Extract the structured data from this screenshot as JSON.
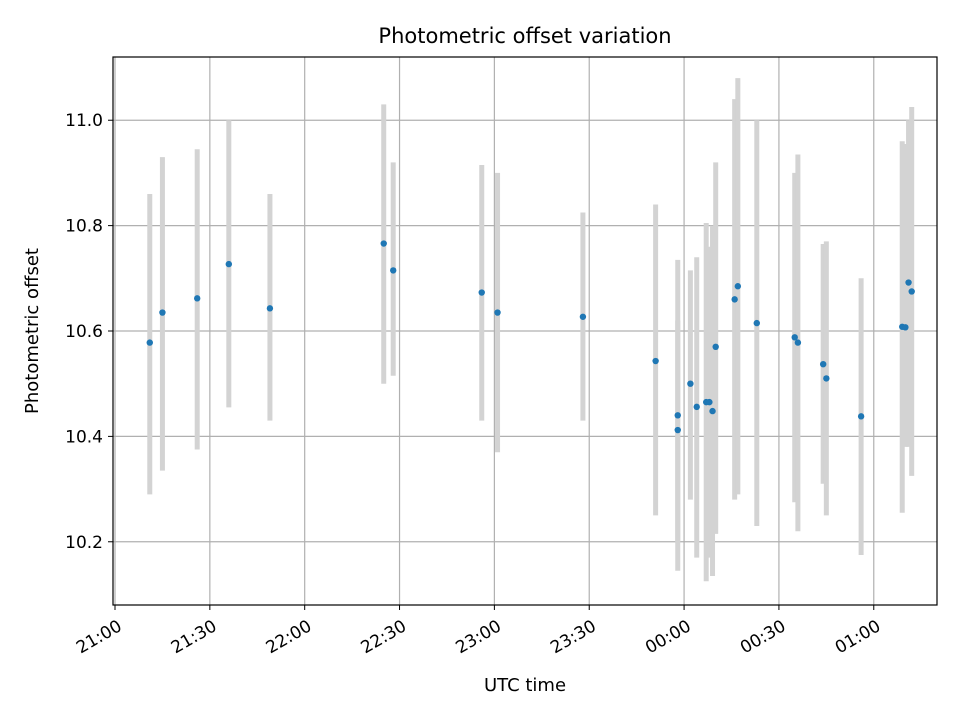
{
  "chart_data": {
    "type": "scatter",
    "title": "Photometric offset variation",
    "xlabel": "UTC time",
    "ylabel": "Photometric offset",
    "grid": true,
    "legend": "none",
    "x_ticks": [
      "21:00",
      "21:30",
      "22:00",
      "22:30",
      "23:00",
      "23:30",
      "00:00",
      "00:30",
      "01:00"
    ],
    "y_ticks": [
      "10.2",
      "10.4",
      "10.6",
      "10.8",
      "11.0"
    ],
    "xlim": [
      "21:00",
      "01:20"
    ],
    "ylim": [
      10.08,
      11.12
    ],
    "colors": {
      "point": "#1f77b4",
      "errorbar": "#d3d3d3",
      "grid": "#b0b0b0"
    },
    "points": [
      {
        "x": "21:11",
        "y": 10.578,
        "ylo": 10.29,
        "yhi": 10.86
      },
      {
        "x": "21:15",
        "y": 10.635,
        "ylo": 10.335,
        "yhi": 10.93
      },
      {
        "x": "21:26",
        "y": 10.662,
        "ylo": 10.375,
        "yhi": 10.945
      },
      {
        "x": "21:36",
        "y": 10.727,
        "ylo": 10.455,
        "yhi": 11.0
      },
      {
        "x": "21:49",
        "y": 10.643,
        "ylo": 10.43,
        "yhi": 10.86
      },
      {
        "x": "22:25",
        "y": 10.766,
        "ylo": 10.5,
        "yhi": 11.03
      },
      {
        "x": "22:28",
        "y": 10.715,
        "ylo": 10.515,
        "yhi": 10.92
      },
      {
        "x": "22:56",
        "y": 10.673,
        "ylo": 10.43,
        "yhi": 10.915
      },
      {
        "x": "23:01",
        "y": 10.635,
        "ylo": 10.37,
        "yhi": 10.9
      },
      {
        "x": "23:28",
        "y": 10.627,
        "ylo": 10.43,
        "yhi": 10.825
      },
      {
        "x": "23:51",
        "y": 10.543,
        "ylo": 10.25,
        "yhi": 10.84
      },
      {
        "x": "23:58",
        "y": 10.44,
        "ylo": 10.145,
        "yhi": 10.735
      },
      {
        "x": "23:58",
        "y": 10.412,
        "ylo": 10.2,
        "yhi": 10.62
      },
      {
        "x": "00:02",
        "y": 10.5,
        "ylo": 10.28,
        "yhi": 10.715
      },
      {
        "x": "00:04",
        "y": 10.456,
        "ylo": 10.17,
        "yhi": 10.74
      },
      {
        "x": "00:07",
        "y": 10.465,
        "ylo": 10.125,
        "yhi": 10.805
      },
      {
        "x": "00:08",
        "y": 10.465,
        "ylo": 10.17,
        "yhi": 10.76
      },
      {
        "x": "00:09",
        "y": 10.448,
        "ylo": 10.135,
        "yhi": 10.8
      },
      {
        "x": "00:10",
        "y": 10.57,
        "ylo": 10.215,
        "yhi": 10.92
      },
      {
        "x": "00:16",
        "y": 10.66,
        "ylo": 10.28,
        "yhi": 11.04
      },
      {
        "x": "00:17",
        "y": 10.685,
        "ylo": 10.29,
        "yhi": 11.08
      },
      {
        "x": "00:23",
        "y": 10.615,
        "ylo": 10.23,
        "yhi": 11.0
      },
      {
        "x": "00:35",
        "y": 10.588,
        "ylo": 10.275,
        "yhi": 10.9
      },
      {
        "x": "00:36",
        "y": 10.578,
        "ylo": 10.22,
        "yhi": 10.935
      },
      {
        "x": "00:44",
        "y": 10.537,
        "ylo": 10.31,
        "yhi": 10.765
      },
      {
        "x": "00:45",
        "y": 10.51,
        "ylo": 10.25,
        "yhi": 10.77
      },
      {
        "x": "00:56",
        "y": 10.438,
        "ylo": 10.175,
        "yhi": 10.7
      },
      {
        "x": "01:09",
        "y": 10.608,
        "ylo": 10.255,
        "yhi": 10.96
      },
      {
        "x": "01:10",
        "y": 10.607,
        "ylo": 10.38,
        "yhi": 10.955
      },
      {
        "x": "01:11",
        "y": 10.692,
        "ylo": 10.38,
        "yhi": 11.0
      },
      {
        "x": "01:12",
        "y": 10.675,
        "ylo": 10.325,
        "yhi": 11.025
      }
    ]
  }
}
